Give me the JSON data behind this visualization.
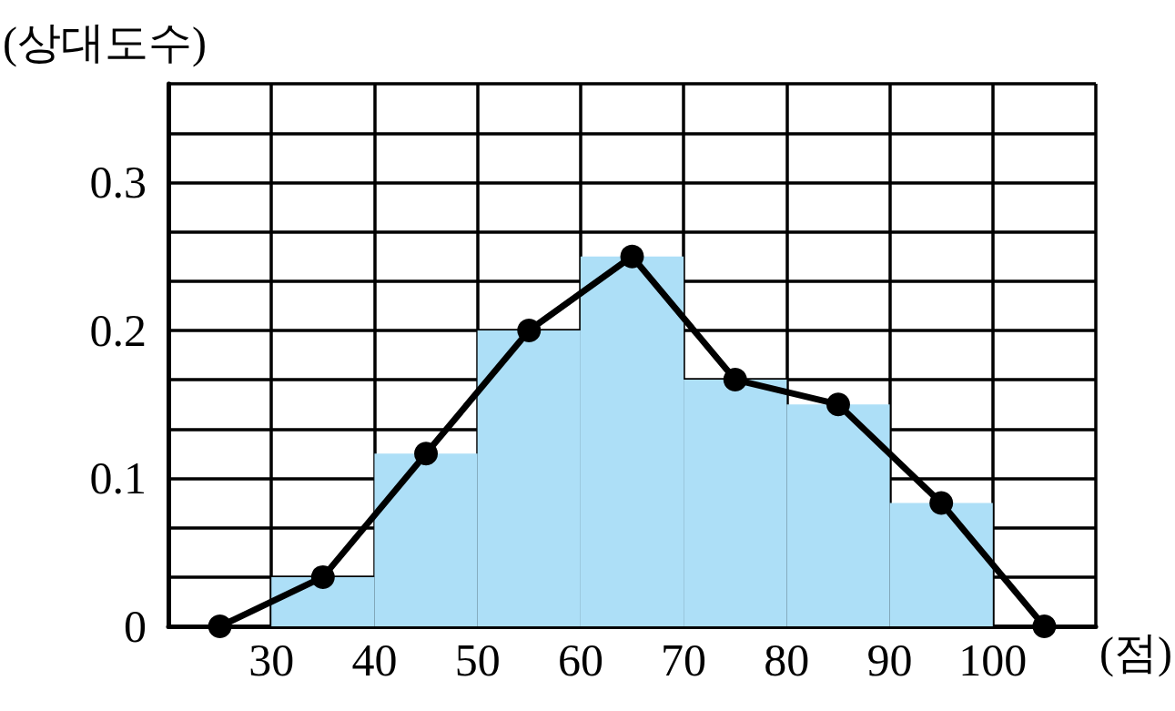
{
  "chart_data": {
    "type": "histogram",
    "xlabel": "(점)",
    "ylabel": "(상대도수)",
    "bins": [
      30,
      40,
      50,
      60,
      70,
      80,
      90,
      100
    ],
    "values": [
      0.0333,
      0.1167,
      0.2,
      0.25,
      0.1667,
      0.15,
      0.0833
    ],
    "color": "#addff7",
    "series": [
      {
        "type": "line",
        "x": [
          25,
          35,
          45,
          55,
          65,
          75,
          85,
          95,
          105
        ],
        "values": [
          0,
          0.0333,
          0.1167,
          0.2,
          0.25,
          0.1667,
          0.15,
          0.0833,
          0
        ],
        "color": "#000000"
      }
    ],
    "marker": "circle",
    "line_style": "solid",
    "grid": true,
    "xlim": [
      20,
      110
    ],
    "xticks": [
      {
        "value": 20,
        "label": null
      },
      30,
      40,
      50,
      60,
      70,
      80,
      90,
      100,
      {
        "value": 110,
        "label": null
      }
    ],
    "ylim": [
      0,
      0.3667
    ],
    "yticks": [
      0,
      {
        "value": 0.0333,
        "label": null
      },
      {
        "value": 0.0667,
        "label": null
      },
      0.1,
      {
        "value": 0.1333,
        "label": null
      },
      {
        "value": 0.1667,
        "label": null
      },
      0.2,
      {
        "value": 0.2333,
        "label": null
      },
      {
        "value": 0.2667,
        "label": null
      },
      0.3,
      {
        "value": 0.3333,
        "label": null
      },
      {
        "value": 0.3667,
        "label": null
      }
    ]
  }
}
